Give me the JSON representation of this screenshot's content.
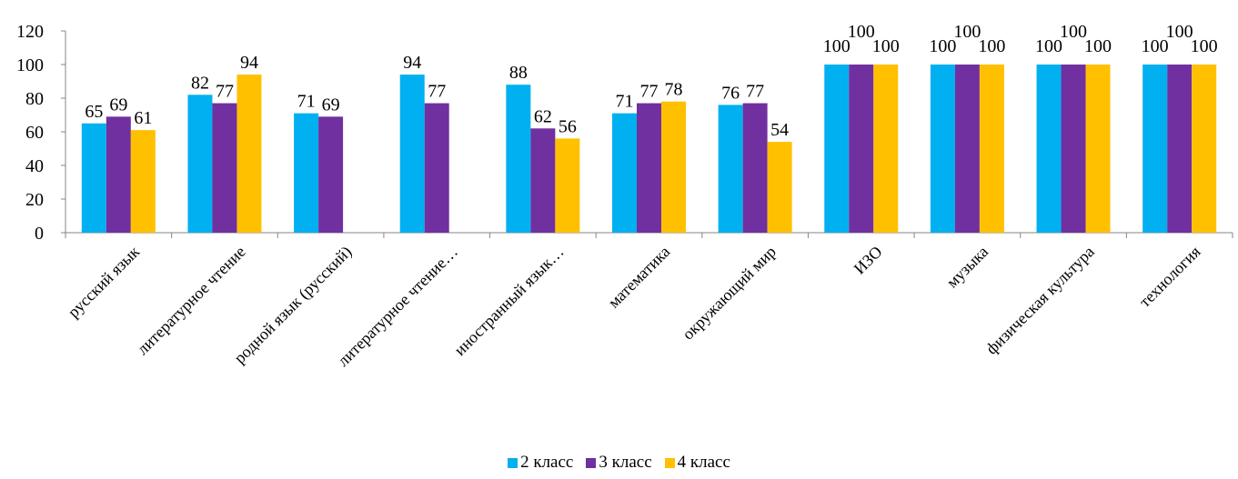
{
  "chart_data": {
    "type": "bar",
    "categories": [
      "русский язык",
      "литературное чтение",
      "родной язык (русский)",
      "литературное чтение…",
      "иностранный язык…",
      "математика",
      "окружающий мир",
      "ИЗО",
      "музыка",
      "физическая культура",
      "технология"
    ],
    "series": [
      {
        "name": "2 класс",
        "color": "#00b0f0",
        "values": [
          65,
          82,
          71,
          94,
          88,
          71,
          76,
          100,
          100,
          100,
          100
        ]
      },
      {
        "name": "3 класс",
        "color": "#7030a0",
        "values": [
          69,
          77,
          69,
          77,
          62,
          77,
          77,
          100,
          100,
          100,
          100
        ]
      },
      {
        "name": "4 класс",
        "color": "#ffc000",
        "values": [
          61,
          94,
          null,
          null,
          56,
          78,
          54,
          100,
          100,
          100,
          100
        ]
      }
    ],
    "ylim": [
      0,
      120
    ],
    "yticks": [
      0,
      20,
      40,
      60,
      80,
      100,
      120
    ],
    "grid": false,
    "legend_position": "bottom"
  }
}
